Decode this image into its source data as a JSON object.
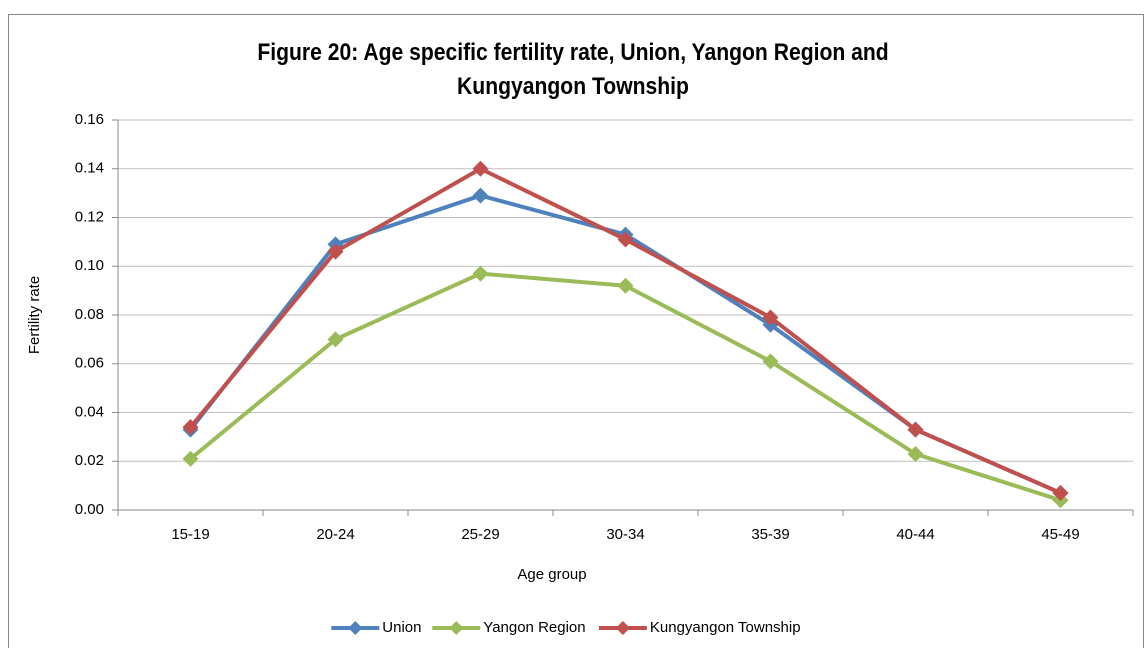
{
  "chart_data": {
    "type": "line",
    "title": "Figure 20: Age specific fertility rate, Union, Yangon Region and Kungyangon Township",
    "x_label": "Age group",
    "y_label": "Fertility rate",
    "categories": [
      "15-19",
      "20-24",
      "25-29",
      "30-34",
      "35-39",
      "40-44",
      "45-49"
    ],
    "series": [
      {
        "name": "Union",
        "color": "#4f81bd",
        "values": [
          0.033,
          0.109,
          0.129,
          0.113,
          0.076,
          0.033,
          0.007
        ]
      },
      {
        "name": "Yangon Region",
        "color": "#9bbb59",
        "values": [
          0.021,
          0.07,
          0.097,
          0.092,
          0.061,
          0.023,
          0.004
        ]
      },
      {
        "name": "Kungyangon Township",
        "color": "#c0504d",
        "values": [
          0.034,
          0.106,
          0.14,
          0.111,
          0.079,
          0.033,
          0.007
        ]
      }
    ],
    "ylim": [
      0,
      0.16
    ],
    "yticks": [
      {
        "value": 0,
        "label": "0.00"
      },
      {
        "value": 0.02,
        "label": "0.02"
      },
      {
        "value": 0.04,
        "label": "0.04"
      },
      {
        "value": 0.06,
        "label": "0.06"
      },
      {
        "value": 0.08,
        "label": "0.08"
      },
      {
        "value": 0.1,
        "label": "0.10"
      },
      {
        "value": 0.12,
        "label": "0.12"
      },
      {
        "value": 0.14,
        "label": "0.14"
      },
      {
        "value": 0.16,
        "label": "0.16"
      }
    ],
    "grid": true,
    "legend": "bottom"
  }
}
